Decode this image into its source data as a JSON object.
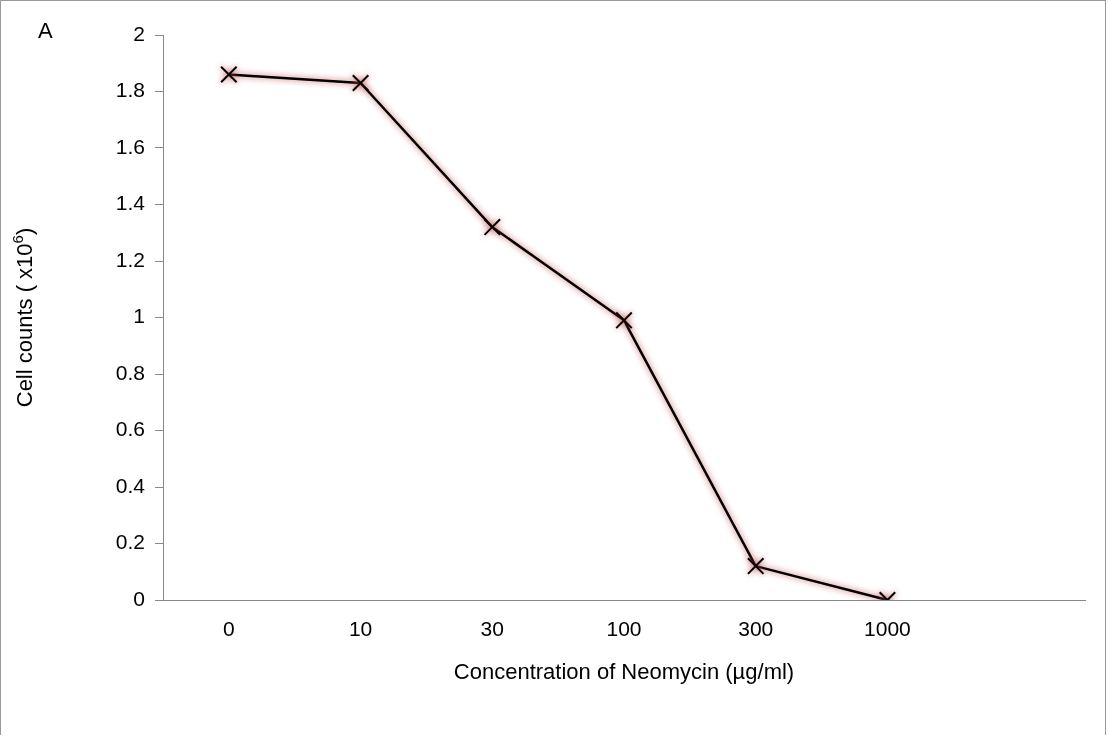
{
  "chart_data": {
    "type": "line",
    "xlabel": "Concentration of Neomycin (µg/ml)",
    "ylabel": "Cell counts ( x10$^{6}$)",
    "annotations": [
      "A"
    ],
    "categories": [
      "0",
      "10",
      "30",
      "100",
      "300",
      "1000",
      null
    ],
    "series": [
      {
        "color": "#000000",
        "values": [
          1.86,
          1.83,
          1.32,
          0.99,
          0.12,
          0,
          null
        ]
      }
    ],
    "ylim": [
      0,
      2
    ],
    "yticks": [
      0,
      0.2,
      0.4,
      0.6,
      0.8,
      1,
      1.2,
      1.4,
      1.6,
      1.8,
      2
    ],
    "grid": false,
    "legend": false,
    "marker": "cross",
    "line_style": "solid"
  }
}
